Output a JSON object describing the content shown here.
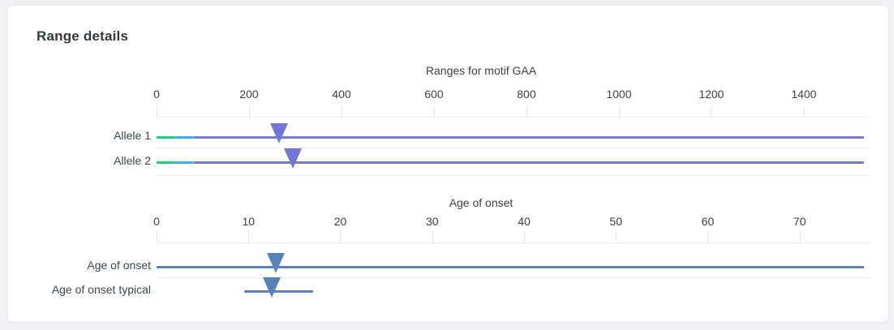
{
  "card": {
    "title": "Range details"
  },
  "colors": {
    "benign": "#1fcf7c",
    "intermediate": "#41aaf4",
    "pathogenic": "#7477d3",
    "onset": "#5b82b8",
    "grid": "#ececec",
    "axis_text": "#3c4043"
  },
  "chart_data": [
    {
      "type": "range-strip",
      "title": "Ranges for motif GAA",
      "axis": {
        "min": 0,
        "max": 1530,
        "ticks": [
          0,
          200,
          400,
          600,
          800,
          1000,
          1200,
          1400
        ]
      },
      "legend_position": "none",
      "rows": [
        {
          "label": "Allele 1",
          "segments": [
            {
              "from": 0,
              "to": 40,
              "color": "benign"
            },
            {
              "from": 40,
              "to": 80,
              "color": "intermediate"
            },
            {
              "from": 80,
              "to": 1530,
              "color": "pathogenic"
            }
          ],
          "marker": {
            "value": 265,
            "color": "pathogenic"
          }
        },
        {
          "label": "Allele 2",
          "segments": [
            {
              "from": 0,
              "to": 40,
              "color": "benign"
            },
            {
              "from": 40,
              "to": 80,
              "color": "intermediate"
            },
            {
              "from": 80,
              "to": 1530,
              "color": "pathogenic"
            }
          ],
          "marker": {
            "value": 295,
            "color": "pathogenic"
          }
        }
      ]
    },
    {
      "type": "range-strip",
      "title": "Age of onset",
      "axis": {
        "min": 0,
        "max": 77,
        "ticks": [
          0,
          10,
          20,
          30,
          40,
          50,
          60,
          70
        ]
      },
      "legend_position": "none",
      "rows": [
        {
          "label": "Age of onset",
          "segments": [
            {
              "from": 0,
              "to": 77,
              "color": "onset"
            }
          ],
          "marker": {
            "value": 13,
            "color": "onset"
          }
        },
        {
          "label": "Age of onset typical",
          "segments": [
            {
              "from": 9.5,
              "to": 17,
              "color": "onset"
            }
          ],
          "marker": {
            "value": 12.5,
            "color": "onset"
          }
        }
      ]
    }
  ]
}
